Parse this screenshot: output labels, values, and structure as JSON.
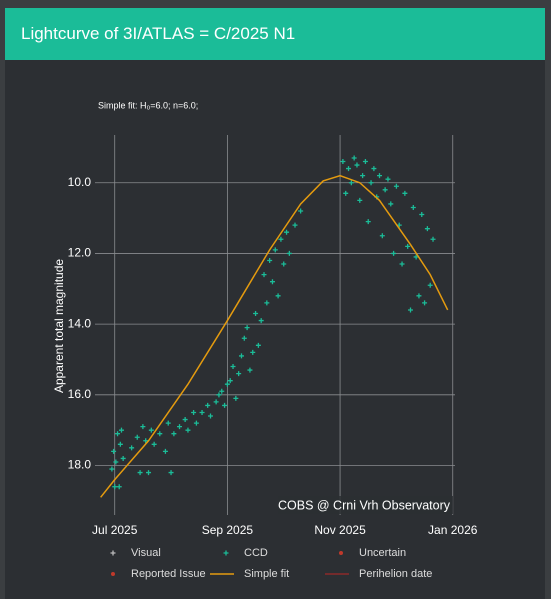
{
  "header": {
    "title": "Lightcurve of 3I/ATLAS = C/2025 N1"
  },
  "chart_data": {
    "type": "scatter",
    "annotation": "Simple fit: H₀=6.0; n=6.0;",
    "credit": "COBS @ Crni Vrh Observatory",
    "y_label": "Apparent total magnitude",
    "xlim": [
      5.65,
      12.04
    ],
    "ylim": [
      19.4,
      8.65
    ],
    "xticks": [
      {
        "value": 6,
        "label": "Jul 2025"
      },
      {
        "value": 8,
        "label": "Sep 2025"
      },
      {
        "value": 10,
        "label": "Nov 2025"
      },
      {
        "value": 12,
        "label": "Jan 2026"
      }
    ],
    "yticks": [
      {
        "value": 10,
        "label": "10.0"
      },
      {
        "value": 12,
        "label": "12.0"
      },
      {
        "value": 14,
        "label": "14.0"
      },
      {
        "value": 16,
        "label": "16.0"
      },
      {
        "value": 18,
        "label": "18.0"
      }
    ],
    "grid": true,
    "series": [
      {
        "name": "Visual",
        "color": "#bbbbbb",
        "marker": "plus",
        "x": [],
        "values": []
      },
      {
        "name": "CCD",
        "color": "#1bbc98",
        "marker": "plus",
        "x": [
          5.95,
          5.98,
          6.0,
          6.02,
          6.05,
          6.08,
          6.1,
          6.12,
          6.15,
          6.3,
          6.4,
          6.45,
          6.5,
          6.55,
          6.6,
          6.65,
          6.7,
          6.8,
          6.9,
          6.95,
          7.0,
          7.05,
          7.15,
          7.25,
          7.3,
          7.4,
          7.45,
          7.55,
          7.65,
          7.7,
          7.8,
          7.85,
          7.9,
          7.95,
          8.0,
          8.05,
          8.1,
          8.15,
          8.2,
          8.25,
          8.3,
          8.35,
          8.4,
          8.45,
          8.5,
          8.55,
          8.6,
          8.65,
          8.7,
          8.75,
          8.8,
          8.85,
          8.9,
          8.95,
          9.0,
          9.05,
          9.1,
          9.2,
          9.3,
          10.05,
          10.1,
          10.15,
          10.2,
          10.25,
          10.3,
          10.35,
          10.4,
          10.45,
          10.5,
          10.55,
          10.6,
          10.65,
          10.7,
          10.75,
          10.8,
          10.85,
          10.9,
          10.95,
          11.0,
          11.05,
          11.1,
          11.15,
          11.2,
          11.25,
          11.3,
          11.35,
          11.4,
          11.45,
          11.5,
          11.55,
          11.6,
          11.65
        ],
        "values": [
          18.1,
          17.6,
          18.6,
          17.9,
          17.1,
          18.6,
          17.4,
          17.0,
          17.8,
          17.5,
          17.2,
          18.2,
          16.9,
          17.3,
          18.2,
          17.0,
          17.4,
          17.1,
          17.6,
          16.8,
          18.2,
          17.1,
          16.9,
          16.7,
          17.0,
          16.5,
          16.8,
          16.5,
          16.3,
          16.6,
          16.2,
          16.0,
          15.9,
          16.3,
          15.7,
          15.6,
          15.2,
          16.1,
          15.4,
          14.9,
          14.4,
          14.1,
          15.3,
          14.8,
          13.7,
          14.6,
          13.9,
          12.6,
          13.4,
          12.2,
          12.8,
          11.9,
          13.2,
          11.6,
          12.3,
          11.4,
          12.0,
          11.2,
          10.8,
          9.4,
          10.3,
          9.6,
          10.0,
          9.3,
          9.5,
          10.5,
          9.8,
          9.4,
          11.1,
          10.0,
          9.6,
          10.4,
          9.8,
          11.5,
          10.2,
          9.9,
          10.6,
          12.0,
          10.1,
          11.2,
          12.3,
          10.3,
          11.8,
          13.6,
          10.7,
          12.1,
          13.2,
          10.9,
          13.4,
          11.3,
          12.9,
          11.6
        ]
      },
      {
        "name": "Uncertain",
        "color": "#c0392b",
        "marker": "dot",
        "x": [],
        "values": []
      },
      {
        "name": "Reported Issue",
        "color": "#c0392b",
        "marker": "dot",
        "x": [],
        "values": []
      },
      {
        "name": "Simple fit",
        "color": "#e49b0f",
        "marker": "line",
        "x": [
          5.75,
          6.0,
          6.6,
          7.3,
          8.0,
          8.75,
          9.3,
          9.7,
          10.0,
          10.35,
          10.7,
          11.25,
          11.6,
          11.91
        ],
        "values": [
          18.9,
          18.4,
          17.3,
          15.7,
          13.9,
          11.9,
          10.6,
          9.95,
          9.8,
          10.0,
          10.5,
          11.75,
          12.6,
          13.6
        ]
      },
      {
        "name": "Perihelion date",
        "color": "#8b2a2a",
        "marker": "line",
        "x": [],
        "values": []
      }
    ]
  }
}
